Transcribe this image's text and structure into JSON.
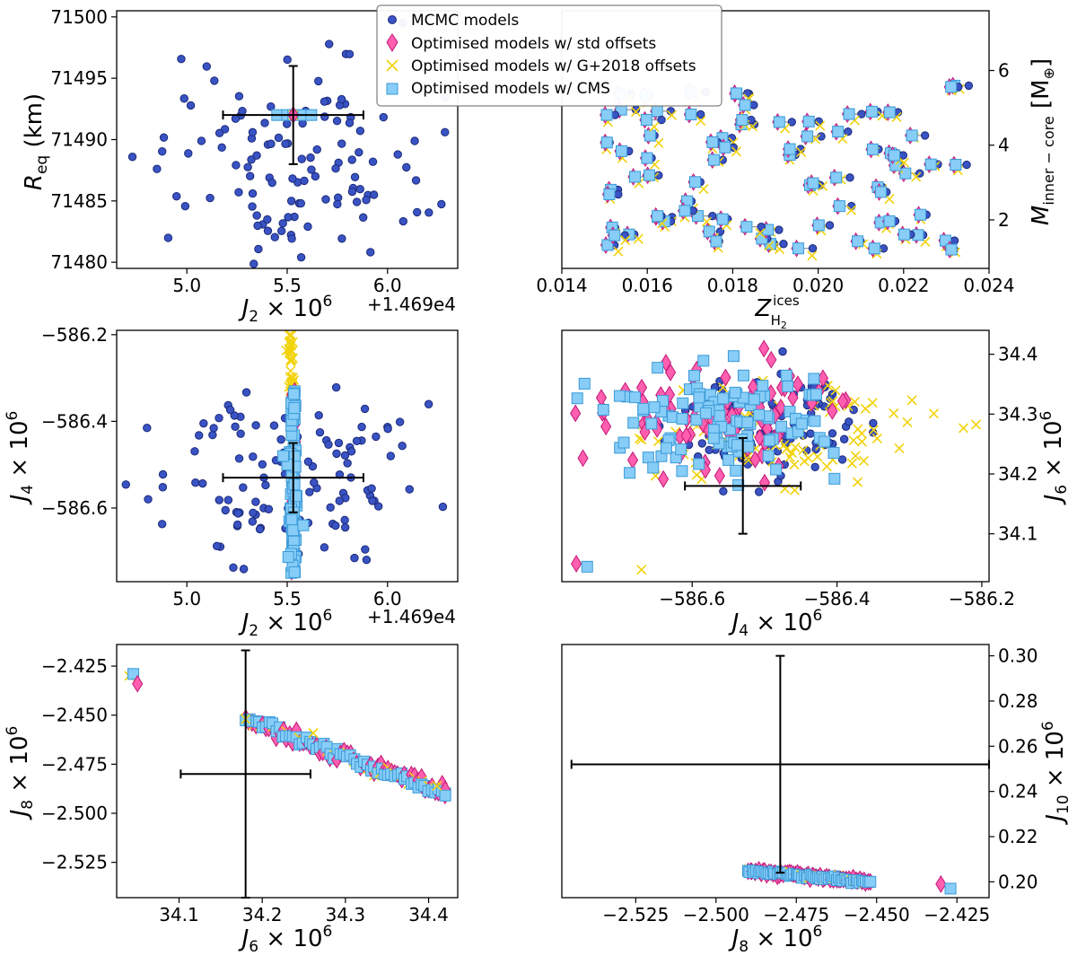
{
  "chart_data": [
    {
      "id": "p1",
      "type": "scatter",
      "xlabel": "J2 ×10^6",
      "ylabel": "R_eq (km)",
      "x_offset_label": "+1.469e4",
      "xlim": [
        4.65,
        6.35
      ],
      "ylim": [
        71479.5,
        71500.5
      ],
      "xticks": [
        5.0,
        5.5,
        6.0
      ],
      "xtick_labels": [
        "5.0",
        "5.5",
        "6.0"
      ],
      "yticks": [
        71480,
        71485,
        71490,
        71495,
        71500
      ],
      "ytick_labels": [
        "71480",
        "71485",
        "71490",
        "71495",
        "71500"
      ],
      "mcmc_count": 120,
      "optimised_std": [
        [
          5.53,
          71492
        ]
      ],
      "optimised_g2018": [
        [
          5.53,
          71492
        ]
      ],
      "optimised_cms": [
        [
          5.45,
          71492
        ],
        [
          5.5,
          71492
        ],
        [
          5.53,
          71492
        ],
        [
          5.58,
          71492
        ],
        [
          5.62,
          71492
        ]
      ],
      "errorbar": {
        "x": 5.53,
        "y": 71492,
        "xerr": 0.35,
        "yerr": 4
      }
    },
    {
      "id": "p2",
      "type": "scatter",
      "xlabel": "Z_H2^ices",
      "ylabel": "M_inner-core [M⊕]",
      "xlim": [
        0.014,
        0.024
      ],
      "ylim": [
        0.7,
        7.6
      ],
      "xticks": [
        0.014,
        0.016,
        0.018,
        0.02,
        0.022,
        0.024
      ],
      "xtick_labels": [
        "0.014",
        "0.016",
        "0.018",
        "0.020",
        "0.022",
        "0.024"
      ],
      "yticks": [
        2,
        4,
        6
      ],
      "ytick_labels": [
        "2",
        "4",
        "6"
      ],
      "model_count": 80,
      "y_axis_side": "right"
    },
    {
      "id": "p3",
      "type": "scatter",
      "xlabel": "J2 ×10^6",
      "ylabel": "J4 ×10^6",
      "x_offset_label": "+1.469e4",
      "xlim": [
        4.65,
        6.35
      ],
      "ylim": [
        -586.77,
        -586.19
      ],
      "xticks": [
        5.0,
        5.5,
        6.0
      ],
      "xtick_labels": [
        "5.0",
        "5.5",
        "6.0"
      ],
      "yticks": [
        -586.6,
        -586.4,
        -586.2
      ],
      "ytick_labels": [
        "−586.6",
        "−586.4",
        "−586.2"
      ],
      "mcmc_count": 120,
      "errorbar": {
        "x": 5.53,
        "y": -586.53,
        "xerr": 0.35,
        "yerr": 0.08
      }
    },
    {
      "id": "p4",
      "type": "scatter",
      "xlabel": "J4 ×10^6",
      "ylabel": "J6 ×10^6",
      "xlim": [
        -586.78,
        -586.19
      ],
      "ylim": [
        34.02,
        34.44
      ],
      "xticks": [
        -586.6,
        -586.4,
        -586.2
      ],
      "xtick_labels": [
        "−586.6",
        "−586.4",
        "−586.2"
      ],
      "yticks": [
        34.1,
        34.2,
        34.3,
        34.4
      ],
      "ytick_labels": [
        "34.1",
        "34.2",
        "34.3",
        "34.4"
      ],
      "y_axis_side": "right",
      "errorbar": {
        "x": -586.53,
        "y": 34.18,
        "xerr": 0.08,
        "yerr": 0.08
      },
      "outliers": [
        [
          -586.76,
          34.05
        ],
        [
          -586.745,
          34.045
        ],
        [
          -586.67,
          34.04
        ]
      ]
    },
    {
      "id": "p5",
      "type": "scatter",
      "xlabel": "J6 ×10^6",
      "ylabel": "J8 ×10^6",
      "xlim": [
        34.025,
        34.435
      ],
      "ylim": [
        -2.543,
        -2.414
      ],
      "xticks": [
        34.1,
        34.2,
        34.3,
        34.4
      ],
      "xtick_labels": [
        "34.1",
        "34.2",
        "34.3",
        "34.4"
      ],
      "yticks": [
        -2.525,
        -2.5,
        -2.475,
        -2.45,
        -2.425
      ],
      "ytick_labels": [
        "−2.525",
        "−2.500",
        "−2.475",
        "−2.450",
        "−2.425"
      ],
      "errorbar": {
        "x": 34.18,
        "y": -2.48,
        "xerr": 0.078,
        "yerr": 0.063
      },
      "trend": {
        "x_start": 34.18,
        "y_start": -2.452,
        "x_end": 34.42,
        "y_end": -2.49
      },
      "outliers": [
        [
          34.04,
          -2.43
        ],
        [
          34.045,
          -2.429
        ],
        [
          34.05,
          -2.434
        ],
        [
          34.42,
          -2.491
        ],
        [
          34.42,
          -2.488
        ]
      ]
    },
    {
      "id": "p6",
      "type": "scatter",
      "xlabel": "J8 ×10^6",
      "ylabel": "J10 ×10^6",
      "xlim": [
        -2.548,
        -2.415
      ],
      "ylim": [
        0.193,
        0.305
      ],
      "xticks": [
        -2.525,
        -2.5,
        -2.475,
        -2.45,
        -2.425
      ],
      "xtick_labels": [
        "−2.525",
        "−2.500",
        "−2.475",
        "−2.450",
        "−2.425"
      ],
      "yticks": [
        0.2,
        0.22,
        0.24,
        0.26,
        0.28,
        0.3
      ],
      "ytick_labels": [
        "0.20",
        "0.22",
        "0.24",
        "0.26",
        "0.28",
        "0.30"
      ],
      "y_axis_side": "right",
      "errorbar": {
        "x": -2.48,
        "y": 0.252,
        "xerr": 0.065,
        "yerr": 0.048
      },
      "trend": {
        "x_start": -2.49,
        "y_start": 0.205,
        "x_end": -2.452,
        "y_end": 0.2
      },
      "outliers": [
        [
          -2.43,
          0.199
        ],
        [
          -2.427,
          0.197
        ]
      ]
    }
  ],
  "legend": {
    "items": [
      {
        "label": "MCMC models",
        "marker": "circle",
        "color": "#3a53c4",
        "edge": "#1a2a78"
      },
      {
        "label": "Optimised models w/ std offsets",
        "marker": "diamond",
        "color": "#ff5fae",
        "edge": "#c2187a"
      },
      {
        "label": "Optimised models w/ G+2018 offsets",
        "marker": "x",
        "color": "#f2d20a",
        "edge": "#f2d20a"
      },
      {
        "label": "Optimised models w/ CMS",
        "marker": "square",
        "color": "#87cdf7",
        "edge": "#3b9ad8"
      }
    ]
  }
}
